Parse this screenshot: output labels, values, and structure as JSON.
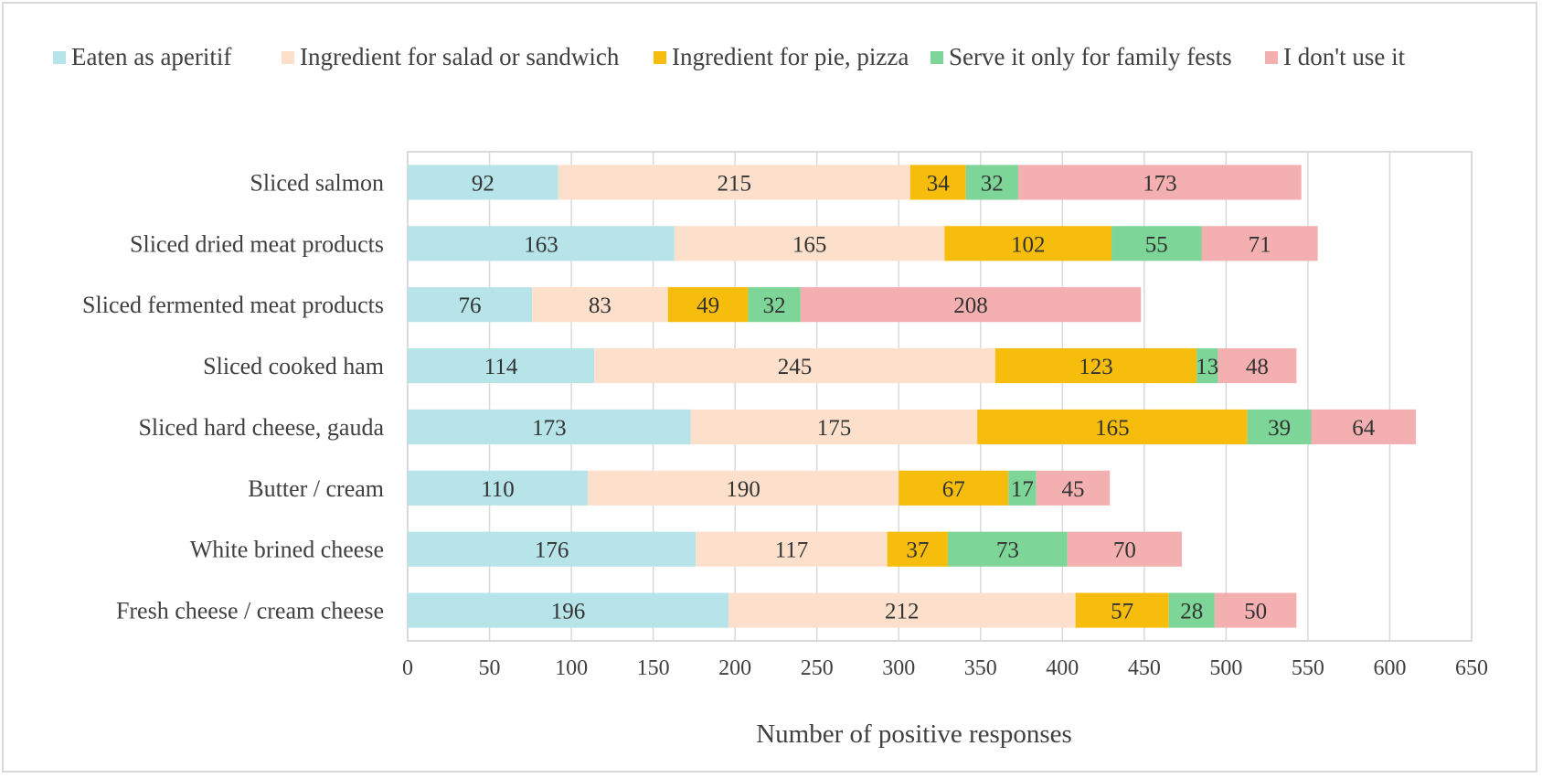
{
  "chart_data": {
    "type": "bar",
    "orientation": "horizontal",
    "stacked": true,
    "title": "",
    "xlabel": "Number of positive responses",
    "ylabel": "",
    "xlim": [
      0,
      650
    ],
    "xticks": [
      0,
      50,
      100,
      150,
      200,
      250,
      300,
      350,
      400,
      450,
      500,
      550,
      600,
      650
    ],
    "grid": "vertical",
    "legend_position": "top",
    "categories": [
      "Sliced salmon",
      "Sliced dried meat products",
      "Sliced fermented meat products",
      "Sliced cooked ham",
      "Sliced hard cheese, gauda",
      "Butter / cream",
      "White brined cheese",
      "Fresh cheese / cream cheese"
    ],
    "series": [
      {
        "name": "Eaten as aperitif",
        "color": "#b7e4e8",
        "values": [
          92,
          163,
          76,
          114,
          173,
          110,
          176,
          196
        ]
      },
      {
        "name": "Ingredient for salad or sandwich",
        "color": "#fde0cc",
        "values": [
          215,
          165,
          83,
          245,
          175,
          190,
          117,
          212
        ]
      },
      {
        "name": "Ingredient for pie, pizza",
        "color": "#f7bd0c",
        "values": [
          34,
          102,
          49,
          123,
          165,
          67,
          37,
          57
        ]
      },
      {
        "name": "Serve it only for family fests",
        "color": "#7dd698",
        "values": [
          32,
          55,
          32,
          13,
          39,
          17,
          73,
          28
        ]
      },
      {
        "name": "I don't use it",
        "color": "#f4b0b0",
        "values": [
          173,
          71,
          208,
          48,
          64,
          45,
          70,
          50
        ]
      }
    ]
  }
}
